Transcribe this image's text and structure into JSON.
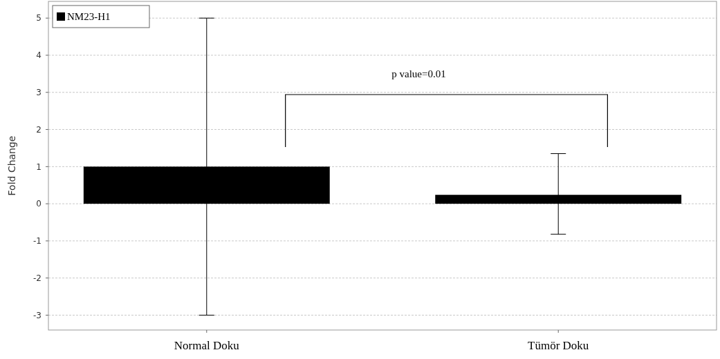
{
  "chart_data": {
    "type": "bar",
    "categories": [
      "Normal Doku",
      "Tümör Doku"
    ],
    "series": [
      {
        "name": "NM23-H1",
        "color": "#000000",
        "values": [
          1.0,
          0.24
        ],
        "errors": [
          [
            -3.0,
            5.0
          ],
          [
            -0.82,
            1.35
          ]
        ]
      }
    ],
    "ylabel": "Fold Change",
    "ylim": [
      -3.4,
      5.45
    ],
    "yticks": [
      -3,
      -2,
      -1,
      0,
      1,
      2,
      3,
      4,
      5
    ],
    "grid": "y",
    "legend": "top left",
    "annotations": [
      "p value=0.01"
    ]
  }
}
